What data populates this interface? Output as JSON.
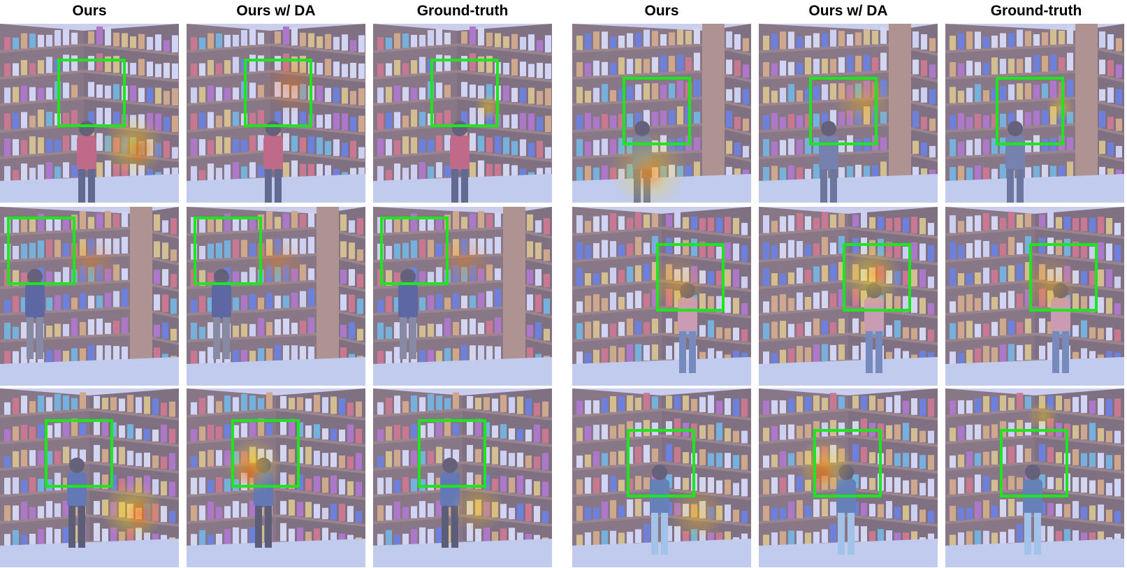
{
  "headers": [
    "Ours",
    "Ours w/ DA",
    "Ground-truth",
    "Ours",
    "Ours w/ DA",
    "Ground-truth"
  ],
  "colors": {
    "box": "#1ee61e",
    "tint": "#aeb2ea",
    "shelf_wood": "#6b4a36",
    "shelf_panel": "#b07a4a",
    "floor": "#cfe0ee"
  },
  "panels": [
    {
      "row": 0,
      "col": 0,
      "scene": "A",
      "heat": "hot-lower-right"
    },
    {
      "row": 0,
      "col": 1,
      "scene": "A",
      "heat": "warm-box-right"
    },
    {
      "row": 0,
      "col": 2,
      "scene": "A",
      "heat": "small-box-right"
    },
    {
      "row": 0,
      "col": 3,
      "scene": "B",
      "heat": "hot-floor"
    },
    {
      "row": 0,
      "col": 4,
      "scene": "B",
      "heat": "warm-box"
    },
    {
      "row": 0,
      "col": 5,
      "scene": "B",
      "heat": "small-box-right"
    },
    {
      "row": 1,
      "col": 0,
      "scene": "C",
      "heat": "warm-right-of-box"
    },
    {
      "row": 1,
      "col": 1,
      "scene": "C",
      "heat": "warm-right-of-box"
    },
    {
      "row": 1,
      "col": 2,
      "scene": "C",
      "heat": "warm-right-of-box"
    },
    {
      "row": 1,
      "col": 3,
      "scene": "D",
      "heat": "warm-box"
    },
    {
      "row": 1,
      "col": 4,
      "scene": "D",
      "heat": "hot-box"
    },
    {
      "row": 1,
      "col": 5,
      "scene": "D",
      "heat": "warm-box"
    },
    {
      "row": 2,
      "col": 0,
      "scene": "E",
      "heat": "hot-lower-right"
    },
    {
      "row": 2,
      "col": 1,
      "scene": "E",
      "heat": "hot-box-left"
    },
    {
      "row": 2,
      "col": 2,
      "scene": "E",
      "heat": "warm-lower"
    },
    {
      "row": 2,
      "col": 3,
      "scene": "F",
      "heat": "warm-lower-right"
    },
    {
      "row": 2,
      "col": 4,
      "scene": "F",
      "heat": "hot-box-left"
    },
    {
      "row": 2,
      "col": 5,
      "scene": "F",
      "heat": "small-top"
    }
  ]
}
